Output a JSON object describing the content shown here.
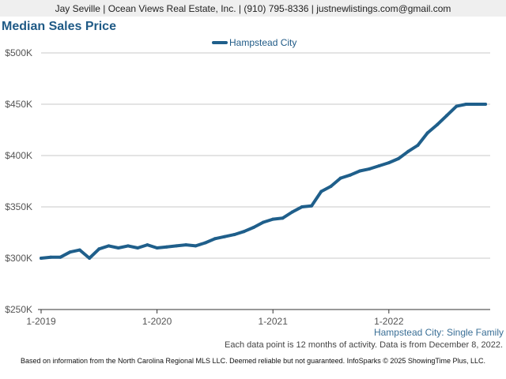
{
  "header": {
    "text": "Jay Seville | Ocean Views Real Estate, Inc. | (910) 795-8336 | justnewlistings.com@gmail.com"
  },
  "title": "Median Sales Price",
  "legend_label": "Hampstead City",
  "series_caption": "Hampstead City: Single Family",
  "footnote": "Each data point is 12 months of activity. Data is from December 8, 2022.",
  "source": "Based on information from the North Carolina Regional MLS LLC. Deemed reliable but not guaranteed. InfoSparks © 2025 ShowingTime Plus, LLC.",
  "colors": {
    "line": "#1f5f8b",
    "title": "#1f5a86",
    "grid": "#c8c8c8"
  },
  "chart_data": {
    "type": "line",
    "title": "Median Sales Price",
    "ylim": [
      250000,
      500000
    ],
    "yticks": [
      {
        "value": 500000,
        "label": "$500K"
      },
      {
        "value": 450000,
        "label": "$450K"
      },
      {
        "value": 400000,
        "label": "$400K"
      },
      {
        "value": 350000,
        "label": "$350K"
      },
      {
        "value": 300000,
        "label": "$300K"
      },
      {
        "value": 250000,
        "label": "$250K"
      }
    ],
    "xlim": [
      "2019-01",
      "2022-11"
    ],
    "xticks": [
      {
        "value": "2019-01",
        "label": "1-2019"
      },
      {
        "value": "2020-01",
        "label": "1-2020"
      },
      {
        "value": "2021-01",
        "label": "1-2021"
      },
      {
        "value": "2022-01",
        "label": "1-2022"
      }
    ],
    "grid": true,
    "legend_position": "top-center",
    "series": [
      {
        "name": "Hampstead City",
        "points": [
          [
            "2019-01",
            300000
          ],
          [
            "2019-02",
            301000
          ],
          [
            "2019-03",
            301000
          ],
          [
            "2019-04",
            306000
          ],
          [
            "2019-05",
            308000
          ],
          [
            "2019-06",
            300000
          ],
          [
            "2019-07",
            309000
          ],
          [
            "2019-08",
            312000
          ],
          [
            "2019-09",
            310000
          ],
          [
            "2019-10",
            312000
          ],
          [
            "2019-11",
            310000
          ],
          [
            "2019-12",
            313000
          ],
          [
            "2020-01",
            310000
          ],
          [
            "2020-02",
            311000
          ],
          [
            "2020-03",
            312000
          ],
          [
            "2020-04",
            313000
          ],
          [
            "2020-05",
            312000
          ],
          [
            "2020-06",
            315000
          ],
          [
            "2020-07",
            319000
          ],
          [
            "2020-08",
            321000
          ],
          [
            "2020-09",
            323000
          ],
          [
            "2020-10",
            326000
          ],
          [
            "2020-11",
            330000
          ],
          [
            "2020-12",
            335000
          ],
          [
            "2021-01",
            338000
          ],
          [
            "2021-02",
            339000
          ],
          [
            "2021-03",
            345000
          ],
          [
            "2021-04",
            350000
          ],
          [
            "2021-05",
            351000
          ],
          [
            "2021-06",
            365000
          ],
          [
            "2021-07",
            370000
          ],
          [
            "2021-08",
            378000
          ],
          [
            "2021-09",
            381000
          ],
          [
            "2021-10",
            385000
          ],
          [
            "2021-11",
            387000
          ],
          [
            "2021-12",
            390000
          ],
          [
            "2022-01",
            393000
          ],
          [
            "2022-02",
            397000
          ],
          [
            "2022-03",
            404000
          ],
          [
            "2022-04",
            410000
          ],
          [
            "2022-05",
            422000
          ],
          [
            "2022-06",
            430000
          ],
          [
            "2022-07",
            439000
          ],
          [
            "2022-08",
            448000
          ],
          [
            "2022-09",
            450000
          ],
          [
            "2022-10",
            450000
          ],
          [
            "2022-11",
            450000
          ]
        ]
      }
    ]
  }
}
